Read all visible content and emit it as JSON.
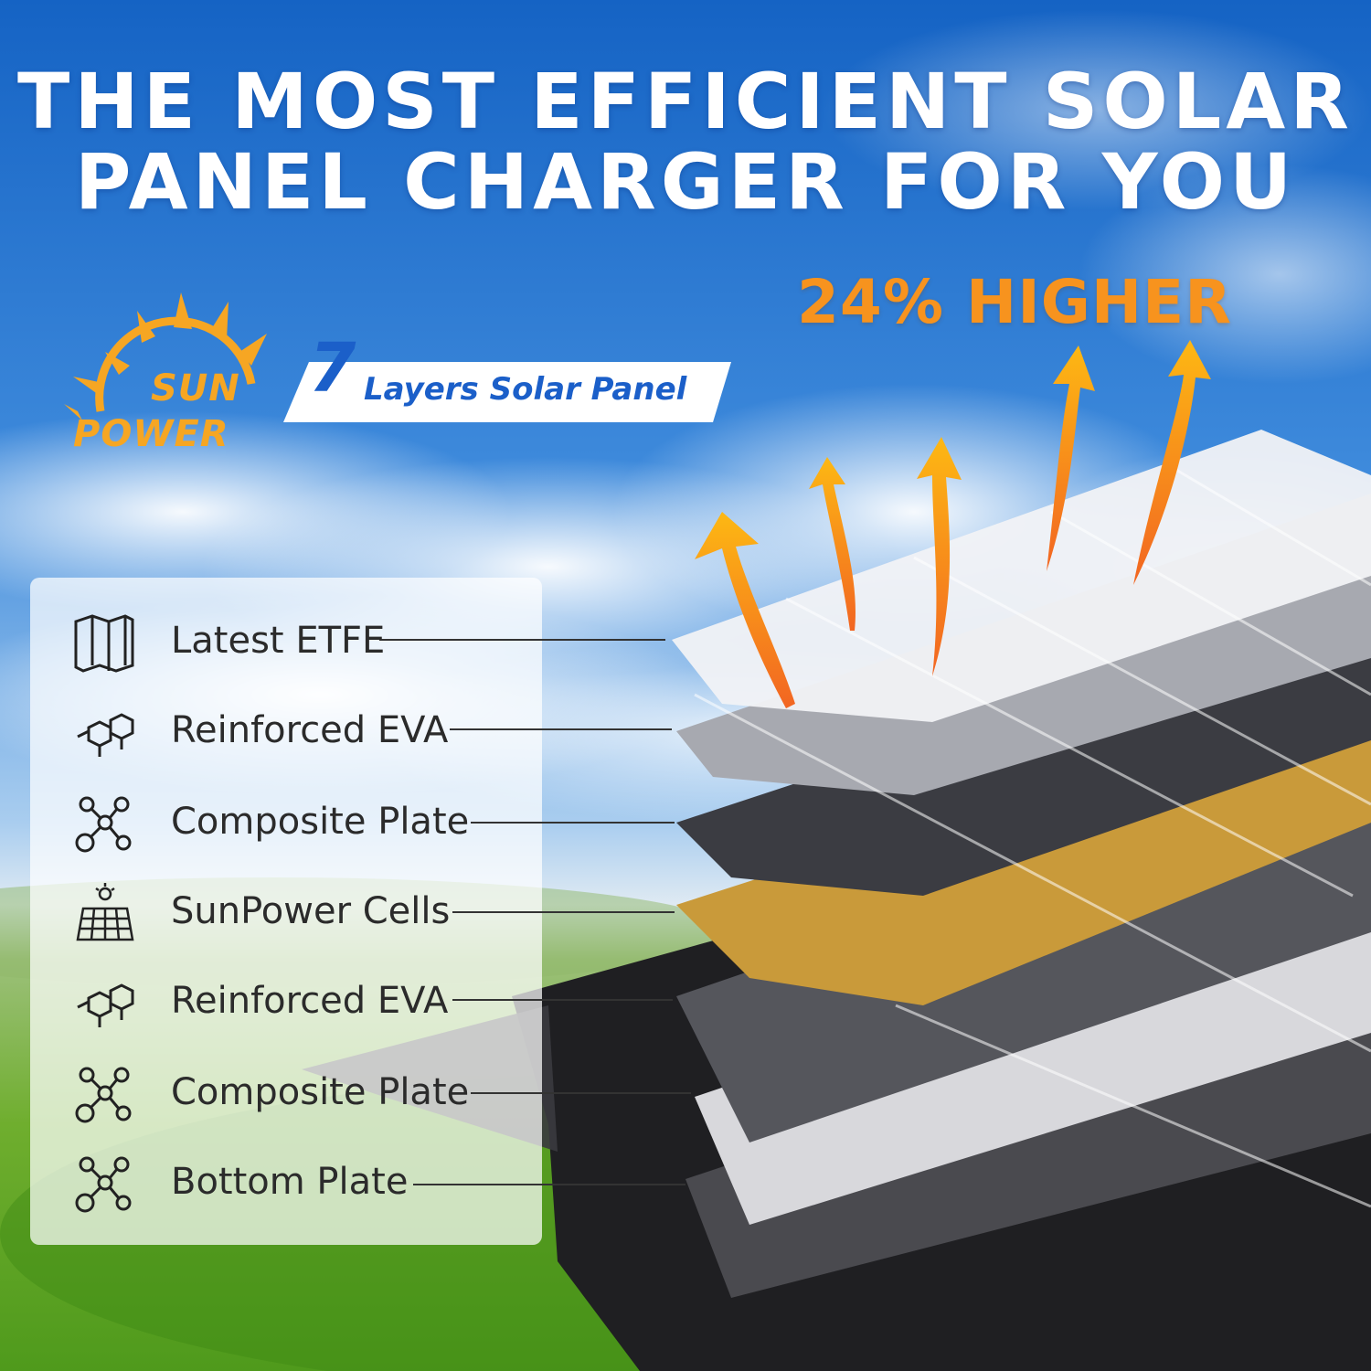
{
  "headline": {
    "line1": "THE MOST EFFICIENT SOLAR",
    "line2": "PANEL CHARGER FOR YOU"
  },
  "highlight": "24% HIGHER",
  "logo": {
    "line1": "SUN",
    "line2": "POWER",
    "icon": "sun-icon",
    "color": "#f6a623"
  },
  "banner": {
    "number": "7",
    "text": "Layers Solar Panel",
    "color": "#1b5fc9"
  },
  "layers": [
    {
      "label": "Latest ETFE",
      "icon": "folded-map-icon"
    },
    {
      "label": "Reinforced EVA",
      "icon": "molecule-hex-icon"
    },
    {
      "label": "Composite Plate",
      "icon": "molecule-node-icon"
    },
    {
      "label": "SunPower Cells",
      "icon": "solar-cell-icon"
    },
    {
      "label": "Reinforced EVA",
      "icon": "molecule-hex-icon"
    },
    {
      "label": "Composite Plate",
      "icon": "molecule-node-icon"
    },
    {
      "label": "Bottom Plate",
      "icon": "molecule-node-icon"
    }
  ],
  "colors": {
    "sky_top": "#1766c7",
    "sky_mid": "#5fa3e6",
    "grass": "#5aa020",
    "arrow_start": "#f26522",
    "arrow_end": "#fdb813",
    "cell_gold": "#c99a3a"
  }
}
